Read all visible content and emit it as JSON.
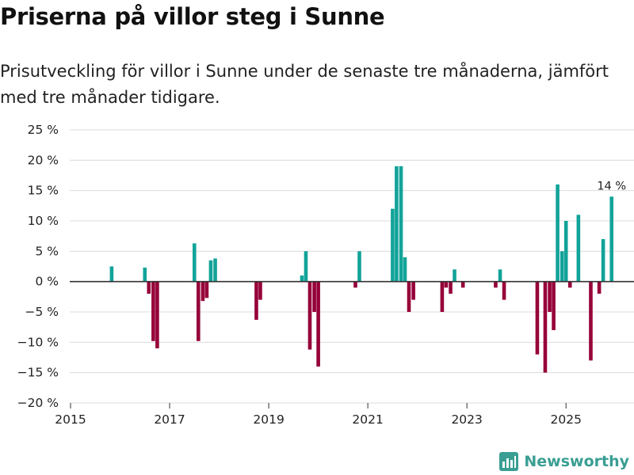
{
  "header": {
    "title": "Priserna på villor steg i Sunne",
    "subtitle": "Prisutveckling för villor i Sunne under de senaste tre månaderna, jämfört med tre månader tidigare."
  },
  "brand": {
    "name": "Newsworthy"
  },
  "colors": {
    "positive": "#12a399",
    "negative": "#960039",
    "grid": "#dcdcdc",
    "zero": "#333333"
  },
  "chart_data": {
    "type": "bar",
    "title": "Priserna på villor steg i Sunne",
    "xlabel": "",
    "ylabel": "",
    "ylim": [
      -20,
      25
    ],
    "yticks": [
      25,
      20,
      15,
      10,
      5,
      0,
      -5,
      -10,
      -15,
      -20
    ],
    "ytick_labels": [
      "25 %",
      "20 %",
      "15 %",
      "10 %",
      "5 %",
      "0 %",
      "−5 %",
      "−10 %",
      "−15 %",
      "−20 %"
    ],
    "xlim": [
      2015.0,
      2026.5
    ],
    "xticks": [
      2015,
      2017,
      2019,
      2021,
      2023,
      2025
    ],
    "xtick_labels": [
      "2015",
      "2017",
      "2019",
      "2021",
      "2023",
      "2025"
    ],
    "annotation": {
      "text": "14 %",
      "x": 2025.92,
      "y": 14
    },
    "points": [
      {
        "x": 2015.83,
        "y": 2.5
      },
      {
        "x": 2016.5,
        "y": 2.3
      },
      {
        "x": 2016.58,
        "y": -2.0
      },
      {
        "x": 2016.67,
        "y": -9.8
      },
      {
        "x": 2016.75,
        "y": -11.0
      },
      {
        "x": 2017.5,
        "y": 6.3
      },
      {
        "x": 2017.58,
        "y": -9.8
      },
      {
        "x": 2017.67,
        "y": -3.2
      },
      {
        "x": 2017.75,
        "y": -2.7
      },
      {
        "x": 2017.83,
        "y": 3.5
      },
      {
        "x": 2017.92,
        "y": 3.8
      },
      {
        "x": 2018.75,
        "y": -6.3
      },
      {
        "x": 2018.83,
        "y": -3.0
      },
      {
        "x": 2019.67,
        "y": 1.0
      },
      {
        "x": 2019.75,
        "y": 5.0
      },
      {
        "x": 2019.83,
        "y": -11.2
      },
      {
        "x": 2019.92,
        "y": -5.0
      },
      {
        "x": 2020.0,
        "y": -14.0
      },
      {
        "x": 2020.75,
        "y": -1.0
      },
      {
        "x": 2020.83,
        "y": 5.0
      },
      {
        "x": 2021.5,
        "y": 12.0
      },
      {
        "x": 2021.58,
        "y": 19.0
      },
      {
        "x": 2021.67,
        "y": 19.0
      },
      {
        "x": 2021.75,
        "y": 4.0
      },
      {
        "x": 2021.83,
        "y": -5.0
      },
      {
        "x": 2021.92,
        "y": -3.0
      },
      {
        "x": 2022.5,
        "y": -5.0
      },
      {
        "x": 2022.58,
        "y": -1.0
      },
      {
        "x": 2022.67,
        "y": -2.0
      },
      {
        "x": 2022.75,
        "y": 2.0
      },
      {
        "x": 2022.92,
        "y": -1.0
      },
      {
        "x": 2023.58,
        "y": -1.0
      },
      {
        "x": 2023.67,
        "y": 2.0
      },
      {
        "x": 2023.75,
        "y": -3.0
      },
      {
        "x": 2024.42,
        "y": -12.0
      },
      {
        "x": 2024.58,
        "y": -15.0
      },
      {
        "x": 2024.67,
        "y": -5.0
      },
      {
        "x": 2024.75,
        "y": -8.0
      },
      {
        "x": 2024.83,
        "y": 16.0
      },
      {
        "x": 2024.92,
        "y": 5.0
      },
      {
        "x": 2025.0,
        "y": 10.0
      },
      {
        "x": 2025.08,
        "y": -1.0
      },
      {
        "x": 2025.25,
        "y": 11.0
      },
      {
        "x": 2025.5,
        "y": -13.0
      },
      {
        "x": 2025.67,
        "y": -2.0
      },
      {
        "x": 2025.75,
        "y": 7.0
      },
      {
        "x": 2025.92,
        "y": 14.0
      }
    ]
  }
}
